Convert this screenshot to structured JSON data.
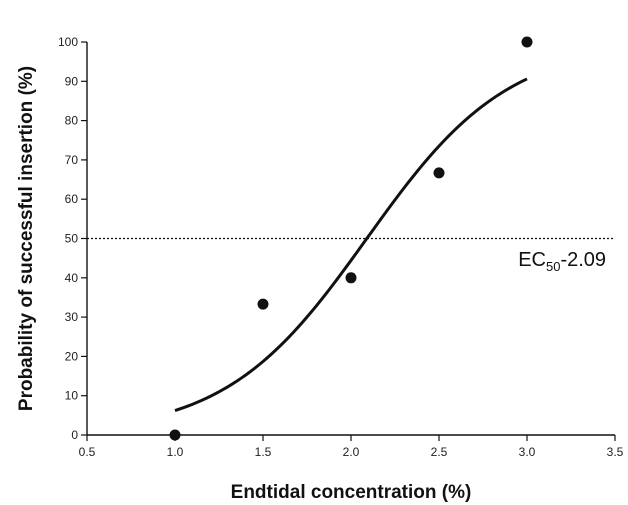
{
  "chart_data": {
    "type": "scatter",
    "title": "",
    "xlabel": "Endtidal concentration (%)",
    "ylabel": "Probability of successful  insertion (%)",
    "xlim": [
      0.5,
      3.5
    ],
    "ylim": [
      0,
      100
    ],
    "x_ticks": [
      0.5,
      1.0,
      1.5,
      2.0,
      2.5,
      3.0,
      3.5
    ],
    "x_tick_labels": [
      "0.5",
      "1.0",
      "1.5",
      "2.0",
      "2.5",
      "3.0",
      "3.5"
    ],
    "y_ticks": [
      0,
      10,
      20,
      30,
      40,
      50,
      60,
      70,
      80,
      90,
      100
    ],
    "y_tick_labels": [
      "0",
      "10",
      "20",
      "30",
      "40",
      "50",
      "60",
      "70",
      "80",
      "90",
      "100"
    ],
    "grid": false,
    "points": [
      {
        "x": 1.0,
        "y": 0
      },
      {
        "x": 1.5,
        "y": 33.3
      },
      {
        "x": 2.0,
        "y": 40
      },
      {
        "x": 2.5,
        "y": 66.7
      },
      {
        "x": 3.0,
        "y": 100
      }
    ],
    "fit_curve": {
      "type": "logistic",
      "x_range": [
        1.0,
        3.0
      ],
      "ec50": 2.09,
      "slope": 2.49
    },
    "reference_line": {
      "y": 50,
      "style": "dotted"
    },
    "annotation": {
      "prefix": "EC",
      "subscript": "50",
      "suffix": "-2.09",
      "x": 2.95,
      "y": 43
    }
  }
}
